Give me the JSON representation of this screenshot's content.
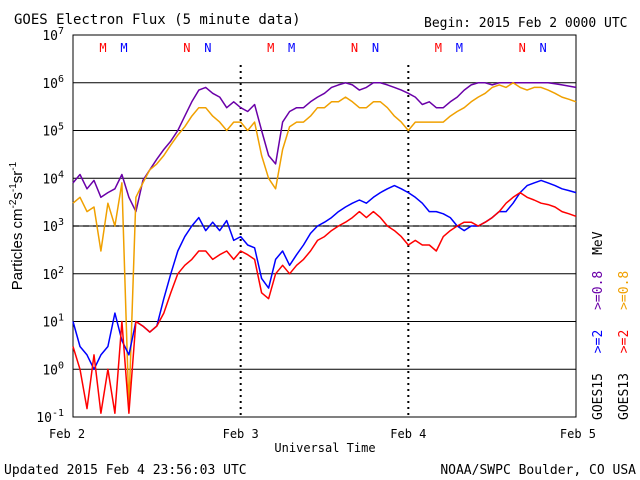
{
  "header": {
    "title": "GOES Electron Flux (5 minute data)",
    "begin": "Begin: 2015 Feb 2 0000 UTC"
  },
  "footer": {
    "updated": "Updated 2015 Feb  4 23:56:03 UTC",
    "credit": "NOAA/SWPC Boulder, CO USA"
  },
  "colors": {
    "goes15_2": "#0000ff",
    "goes13_2": "#ff0000",
    "goes15_08": "#6a00a8",
    "goes13_08": "#f0a000",
    "marker_M_goes13": "#ff0000",
    "marker_M_goes15": "#0000ff",
    "alert_line": "#000000"
  },
  "chart_data": {
    "type": "line",
    "title": "GOES Electron Flux (5 minute data)",
    "xlabel": "Universal Time",
    "ylabel": "Particles cm-2s-1sr-1",
    "x_ticks": [
      "Feb 2",
      "Feb 3",
      "Feb 4",
      "Feb 5"
    ],
    "xlim": [
      0,
      72
    ],
    "x_unit": "hours since 2015 Feb 2 0000 UTC",
    "y_scale": "log",
    "ylim": [
      0.1,
      10000000
    ],
    "y_ticks": [
      {
        "base": "10",
        "exp": "-1",
        "value": 0.1
      },
      {
        "base": "10",
        "exp": "0",
        "value": 1
      },
      {
        "base": "10",
        "exp": "1",
        "value": 10
      },
      {
        "base": "10",
        "exp": "2",
        "value": 100
      },
      {
        "base": "10",
        "exp": "3",
        "value": 1000
      },
      {
        "base": "10",
        "exp": "4",
        "value": 10000
      },
      {
        "base": "10",
        "exp": "5",
        "value": 100000
      },
      {
        "base": "10",
        "exp": "6",
        "value": 1000000
      },
      {
        "base": "10",
        "exp": "7",
        "value": 10000000
      }
    ],
    "alert_threshold": 1000,
    "grid": true,
    "legend": [
      {
        "text": "GOES15",
        "channel": ">=2",
        "channel2": ">=0.8",
        "unit": "MeV"
      },
      {
        "text": "GOES13",
        "channel": ">=2",
        "channel2": ">=0.8"
      }
    ],
    "markers": [
      {
        "label": "M",
        "x": 4.3,
        "color": "#ff0000"
      },
      {
        "label": "M",
        "x": 7.3,
        "color": "#0000ff"
      },
      {
        "label": "N",
        "x": 16.3,
        "color": "#ff0000"
      },
      {
        "label": "N",
        "x": 19.3,
        "color": "#0000ff"
      },
      {
        "label": "M",
        "x": 28.3,
        "color": "#ff0000"
      },
      {
        "label": "M",
        "x": 31.3,
        "color": "#0000ff"
      },
      {
        "label": "N",
        "x": 40.3,
        "color": "#ff0000"
      },
      {
        "label": "N",
        "x": 43.3,
        "color": "#0000ff"
      },
      {
        "label": "M",
        "x": 52.3,
        "color": "#ff0000"
      },
      {
        "label": "M",
        "x": 55.3,
        "color": "#0000ff"
      },
      {
        "label": "N",
        "x": 64.3,
        "color": "#ff0000"
      },
      {
        "label": "N",
        "x": 67.3,
        "color": "#0000ff"
      }
    ],
    "series": [
      {
        "name": "GOES15 >=0.8 MeV",
        "color": "#6a00a8",
        "x": [
          0,
          1,
          2,
          3,
          4,
          5,
          6,
          7,
          8,
          9,
          10,
          11,
          12,
          13,
          14,
          15,
          16,
          17,
          18,
          19,
          20,
          21,
          22,
          23,
          24,
          25,
          26,
          27,
          28,
          29,
          30,
          31,
          32,
          33,
          34,
          35,
          36,
          37,
          38,
          39,
          40,
          41,
          42,
          43,
          44,
          45,
          46,
          47,
          48,
          49,
          50,
          51,
          52,
          53,
          54,
          55,
          56,
          57,
          58,
          59,
          60,
          61,
          62,
          63,
          64,
          65,
          66,
          67,
          68,
          69,
          70,
          71,
          72
        ],
        "values": [
          8000,
          12000,
          6000,
          9000,
          4000,
          5000,
          6000,
          12000,
          4000,
          2000,
          9000,
          15000,
          25000,
          40000,
          60000,
          100000,
          200000,
          400000,
          700000,
          800000,
          600000,
          500000,
          300000,
          400000,
          300000,
          250000,
          350000,
          100000,
          30000,
          20000,
          150000,
          250000,
          300000,
          300000,
          400000,
          500000,
          600000,
          800000,
          900000,
          1000000,
          900000,
          700000,
          800000,
          1000000,
          1000000,
          900000,
          800000,
          700000,
          600000,
          500000,
          350000,
          400000,
          300000,
          300000,
          400000,
          500000,
          700000,
          900000,
          1000000,
          1000000,
          900000,
          1000000,
          1000000,
          1000000,
          1000000,
          1000000,
          1000000,
          1000000,
          1000000,
          950000,
          900000,
          850000,
          800000
        ]
      },
      {
        "name": "GOES13 >=0.8 MeV",
        "color": "#f0a000",
        "x": [
          0,
          1,
          2,
          3,
          4,
          5,
          6,
          7,
          8,
          9,
          10,
          11,
          12,
          13,
          14,
          15,
          16,
          17,
          18,
          19,
          20,
          21,
          22,
          23,
          24,
          25,
          26,
          27,
          28,
          29,
          30,
          31,
          32,
          33,
          34,
          35,
          36,
          37,
          38,
          39,
          40,
          41,
          42,
          43,
          44,
          45,
          46,
          47,
          48,
          49,
          50,
          51,
          52,
          53,
          54,
          55,
          56,
          57,
          58,
          59,
          60,
          61,
          62,
          63,
          64,
          65,
          66,
          67,
          68,
          69,
          70,
          71,
          72
        ],
        "values": [
          3000,
          4000,
          2000,
          2500,
          300,
          3000,
          1000,
          8000,
          0.15,
          4000,
          8000,
          15000,
          20000,
          30000,
          50000,
          80000,
          120000,
          200000,
          300000,
          300000,
          200000,
          150000,
          100000,
          150000,
          150000,
          100000,
          150000,
          30000,
          10000,
          6000,
          40000,
          120000,
          150000,
          150000,
          200000,
          300000,
          300000,
          400000,
          400000,
          500000,
          400000,
          300000,
          300000,
          400000,
          400000,
          300000,
          200000,
          150000,
          100000,
          150000,
          150000,
          150000,
          150000,
          150000,
          200000,
          250000,
          300000,
          400000,
          500000,
          600000,
          800000,
          900000,
          800000,
          1000000,
          800000,
          700000,
          800000,
          800000,
          700000,
          600000,
          500000,
          450000,
          400000
        ]
      },
      {
        "name": "GOES15 >=2 MeV",
        "color": "#0000ff",
        "x": [
          0,
          1,
          2,
          3,
          4,
          5,
          6,
          7,
          8,
          9,
          10,
          11,
          12,
          13,
          14,
          15,
          16,
          17,
          18,
          19,
          20,
          21,
          22,
          23,
          24,
          25,
          26,
          27,
          28,
          29,
          30,
          31,
          32,
          33,
          34,
          35,
          36,
          37,
          38,
          39,
          40,
          41,
          42,
          43,
          44,
          45,
          46,
          47,
          48,
          49,
          50,
          51,
          52,
          53,
          54,
          55,
          56,
          57,
          58,
          59,
          60,
          61,
          62,
          63,
          64,
          65,
          66,
          67,
          68,
          69,
          70,
          71,
          72
        ],
        "values": [
          10,
          3,
          2,
          1,
          2,
          3,
          15,
          4,
          2,
          10,
          8,
          6,
          8,
          30,
          100,
          300,
          600,
          1000,
          1500,
          800,
          1200,
          800,
          1300,
          500,
          600,
          400,
          350,
          80,
          50,
          200,
          300,
          150,
          250,
          400,
          700,
          1000,
          1200,
          1500,
          2000,
          2500,
          3000,
          3500,
          3000,
          4000,
          5000,
          6000,
          7000,
          6000,
          5000,
          4000,
          3000,
          2000,
          2000,
          1800,
          1500,
          1000,
          800,
          1000,
          1000,
          1200,
          1500,
          2000,
          2000,
          3000,
          5000,
          7000,
          8000,
          9000,
          8000,
          7000,
          6000,
          5500,
          5000
        ]
      },
      {
        "name": "GOES13 >=2 MeV",
        "color": "#ff0000",
        "x": [
          0,
          1,
          2,
          3,
          4,
          5,
          6,
          7,
          8,
          9,
          10,
          11,
          12,
          13,
          14,
          15,
          16,
          17,
          18,
          19,
          20,
          21,
          22,
          23,
          24,
          25,
          26,
          27,
          28,
          29,
          30,
          31,
          32,
          33,
          34,
          35,
          36,
          37,
          38,
          39,
          40,
          41,
          42,
          43,
          44,
          45,
          46,
          47,
          48,
          49,
          50,
          51,
          52,
          53,
          54,
          55,
          56,
          57,
          58,
          59,
          60,
          61,
          62,
          63,
          64,
          65,
          66,
          67,
          68,
          69,
          70,
          71,
          72
        ],
        "values": [
          3,
          1,
          0.15,
          2,
          0.12,
          1,
          0.12,
          10,
          0.12,
          10,
          8,
          6,
          8,
          15,
          40,
          100,
          150,
          200,
          300,
          300,
          200,
          250,
          300,
          200,
          300,
          250,
          200,
          40,
          30,
          100,
          150,
          100,
          150,
          200,
          300,
          500,
          600,
          800,
          1000,
          1200,
          1500,
          2000,
          1500,
          2000,
          1500,
          1000,
          800,
          600,
          400,
          500,
          400,
          400,
          300,
          600,
          800,
          1000,
          1200,
          1200,
          1000,
          1200,
          1500,
          2000,
          3000,
          4000,
          5000,
          4000,
          3500,
          3000,
          2800,
          2500,
          2000,
          1800,
          1600
        ]
      }
    ]
  }
}
